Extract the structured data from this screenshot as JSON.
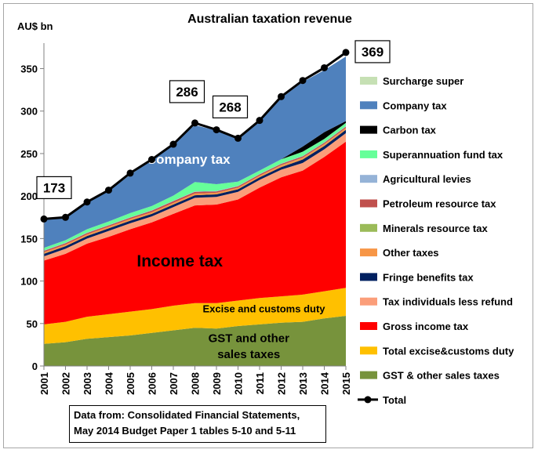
{
  "chart_data": {
    "type": "area",
    "title": "Australian taxation revenue",
    "ylabel": "AU$ bn",
    "xlabel": "",
    "ylim": [
      0,
      380
    ],
    "yticks": [
      0,
      50,
      100,
      150,
      200,
      250,
      300,
      350
    ],
    "x": [
      "2001",
      "2002",
      "2003",
      "2004",
      "2005",
      "2006",
      "2007",
      "2008",
      "2009",
      "2010",
      "2011",
      "2012",
      "2013",
      "2014",
      "2015"
    ],
    "stacked": true,
    "grid": false,
    "legend_position": "right",
    "series": [
      {
        "name": "GST & other sales taxes",
        "color": "#77933c",
        "values": [
          26,
          28,
          32,
          34,
          36,
          39,
          42,
          45,
          44,
          47,
          49,
          51,
          52,
          56,
          59
        ]
      },
      {
        "name": "Total excise&customs duty",
        "color": "#ffc000",
        "values": [
          23,
          24,
          26,
          27,
          28,
          28,
          29,
          29,
          30,
          30,
          31,
          31,
          32,
          32,
          33
        ]
      },
      {
        "name": "Gross income tax",
        "color": "#ff0000",
        "values": [
          75,
          80,
          86,
          91,
          97,
          102,
          108,
          115,
          116,
          119,
          130,
          140,
          146,
          158,
          172
        ]
      },
      {
        "name": "Tax individuals less refund",
        "color": "#fb9e7a",
        "values": [
          5,
          6,
          6,
          7,
          7,
          7,
          8,
          9,
          9,
          9,
          9,
          9,
          9,
          9,
          10
        ]
      },
      {
        "name": "Fringe benefits tax",
        "color": "#002060",
        "values": [
          3,
          3,
          3,
          3,
          3,
          3,
          3,
          3,
          3,
          3,
          3,
          3,
          4,
          4,
          4
        ]
      },
      {
        "name": "Other taxes",
        "color": "#f79646",
        "values": [
          2,
          2,
          2,
          2,
          2,
          2,
          2,
          2,
          2,
          2,
          2,
          2,
          2,
          2,
          2
        ]
      },
      {
        "name": "Minerals resource tax",
        "color": "#9bbb59",
        "values": [
          0,
          0,
          0,
          0,
          0,
          0,
          0,
          0,
          0,
          0,
          0,
          0.3,
          0.2,
          0.2,
          0.2
        ]
      },
      {
        "name": "Petroleum resource tax",
        "color": "#c0504d",
        "values": [
          1.5,
          1.5,
          1.5,
          1.5,
          1.5,
          1.8,
          2,
          2,
          1.5,
          1.5,
          1.5,
          1.5,
          1.5,
          1.5,
          1.5
        ]
      },
      {
        "name": "Agricultural levies",
        "color": "#95b3d7",
        "values": [
          0.5,
          0.5,
          0.5,
          0.5,
          0.5,
          0.5,
          0.5,
          0.5,
          0.5,
          0.5,
          0.5,
          0.5,
          0.5,
          0.5,
          0.5
        ]
      },
      {
        "name": "Superannuation fund tax",
        "color": "#66ff99",
        "values": [
          3,
          3,
          4,
          4,
          5,
          5,
          6,
          11,
          8,
          5,
          4,
          5,
          5,
          4,
          4
        ]
      },
      {
        "name": "Carbon tax",
        "color": "#000000",
        "values": [
          0,
          0,
          0,
          0,
          0,
          0,
          0,
          0,
          0,
          0,
          0,
          0,
          6,
          8,
          2
        ]
      },
      {
        "name": "Company tax",
        "color": "#4f81bd",
        "values": [
          33,
          27,
          32,
          36,
          45,
          54,
          62,
          67,
          63,
          51,
          58,
          72,
          76,
          73,
          76
        ]
      },
      {
        "name": "Surcharge super",
        "color": "#c6e0b4",
        "values": [
          0.5,
          0.5,
          0.5,
          0.5,
          0.5,
          0.2,
          0,
          0,
          0,
          0,
          0,
          0,
          0,
          0,
          0
        ]
      }
    ],
    "total": {
      "name": "Total",
      "color": "#000000",
      "values": [
        173,
        175,
        193,
        207,
        227,
        243,
        261,
        286,
        278,
        268,
        289,
        317,
        336,
        351,
        369
      ]
    },
    "callouts": [
      {
        "x": "2001",
        "label": "173"
      },
      {
        "x": "2008",
        "label": "286"
      },
      {
        "x": "2010",
        "label": "268"
      },
      {
        "x": "2015",
        "label": "369"
      }
    ],
    "annotations": [
      {
        "text": "Company tax",
        "x": "2007.7",
        "y": 238,
        "color": "#ffffff",
        "size": 17
      },
      {
        "text": "Income tax",
        "x": "2007.3",
        "y": 117,
        "color": "#000000",
        "size": 21
      },
      {
        "text": "Excise and customs duty",
        "x": "2011.2",
        "y": 63,
        "color": "#000000",
        "size": 13
      },
      {
        "text": "GST and other",
        "x": "2010.5",
        "y": 28,
        "color": "#000000",
        "size": 15
      },
      {
        "text": "sales taxes",
        "x": "2010.5",
        "y": 9,
        "color": "#000000",
        "size": 15
      }
    ],
    "legend_order": [
      "Surcharge super",
      "Company tax",
      "Carbon tax",
      "Superannuation fund tax",
      "Agricultural levies",
      "Petroleum resource tax",
      "Minerals resource tax",
      "Other taxes",
      "Fringe benefits tax",
      "Tax individuals less refund",
      "Gross income tax",
      "Total excise&customs duty",
      "GST & other sales taxes",
      "Total"
    ]
  },
  "source_note": {
    "line1": "Data from: Consolidated Financial Statements,",
    "line2": "May 2014 Budget Paper 1 tables 5-10 and 5-11"
  }
}
